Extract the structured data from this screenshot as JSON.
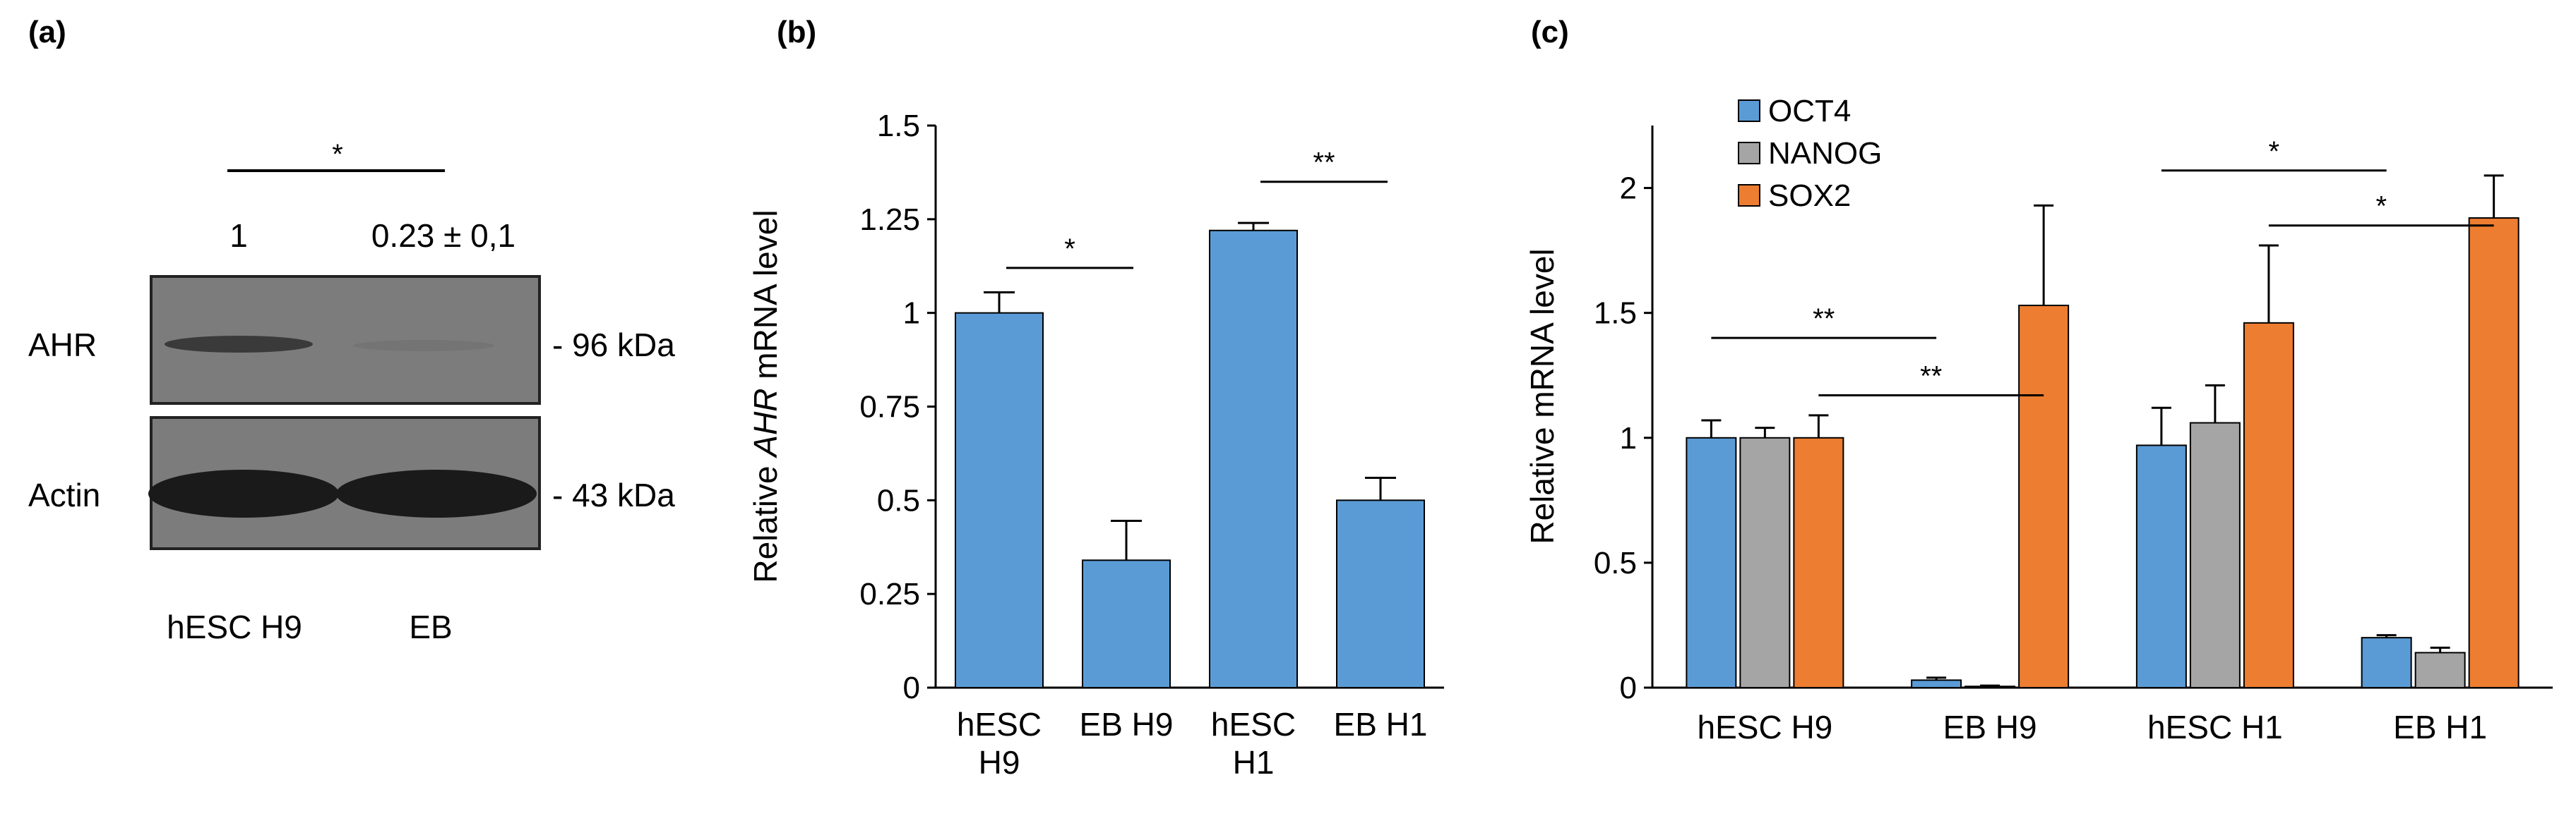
{
  "chart_data": [
    {
      "type": "western-blot",
      "panel_label": "(a)",
      "lanes": [
        "hESC H9",
        "EB"
      ],
      "bands": [
        {
          "name": "AHR",
          "size": "- 96 kDa"
        },
        {
          "name": "Actin",
          "size": "- 43 kDa"
        }
      ],
      "quantification": [
        "1",
        "0.23 ± 0,1"
      ],
      "significance": "*"
    },
    {
      "type": "bar",
      "panel_label": "(b)",
      "ylabel_italic": "AHR",
      "ylabel_prefix": "Relative ",
      "ylabel_suffix": " mRNA level",
      "categories": [
        [
          "hESC",
          "H9"
        ],
        [
          "EB H9"
        ],
        [
          "hESC",
          "H1"
        ],
        [
          "EB H1"
        ]
      ],
      "values": [
        1.0,
        0.34,
        1.22,
        0.5
      ],
      "errors": [
        0.055,
        0.105,
        0.02,
        0.06
      ],
      "color": "#5b9bd5",
      "ylim": [
        0,
        1.5
      ],
      "yticks": [
        0,
        0.25,
        0.5,
        0.75,
        1,
        1.25,
        1.5
      ],
      "ytick_labels": [
        "0",
        "0.25",
        "0.5",
        "0.75",
        "1",
        "1.25",
        "1.5"
      ],
      "significance": [
        {
          "from": 0,
          "to": 1,
          "y": 1.12,
          "label": "*"
        },
        {
          "from": 2,
          "to": 3,
          "y": 1.35,
          "label": "**"
        }
      ]
    },
    {
      "type": "bar",
      "panel_label": "(c)",
      "ylabel": "Relative mRNA level",
      "categories": [
        "hESC H9",
        "EB H9",
        "hESC H1",
        "EB H1"
      ],
      "series": [
        {
          "name": "OCT4",
          "color": "#5b9bd5",
          "values": [
            1.0,
            0.03,
            0.97,
            0.2
          ],
          "errors": [
            0.07,
            0.01,
            0.15,
            0.01
          ]
        },
        {
          "name": "NANOG",
          "color": "#a5a5a5",
          "values": [
            1.0,
            0.005,
            1.06,
            0.14
          ],
          "errors": [
            0.04,
            0.003,
            0.15,
            0.02
          ]
        },
        {
          "name": "SOX2",
          "color": "#ed7d31",
          "values": [
            1.0,
            1.53,
            1.46,
            1.88
          ],
          "errors": [
            0.09,
            0.4,
            0.31,
            0.17
          ]
        }
      ],
      "ylim": [
        0,
        2.25
      ],
      "yticks": [
        0,
        0.5,
        1,
        1.5,
        2
      ],
      "ytick_labels": [
        "0",
        "0.5",
        "1",
        "1.5",
        "2"
      ],
      "significance": [
        {
          "from_group": 0,
          "from_series": 0,
          "to_group": 1,
          "to_series": 0,
          "y": 1.4,
          "label": "**"
        },
        {
          "from_group": 0,
          "from_series": 2,
          "to_group": 1,
          "to_series": 2,
          "y": 1.17,
          "label": "**"
        },
        {
          "from_group": 2,
          "from_series": 0,
          "to_group": 3,
          "to_series": 0,
          "y": 2.07,
          "label": "*"
        },
        {
          "from_group": 2,
          "from_series": 2,
          "to_group": 3,
          "to_series": 2,
          "y": 1.85,
          "label": "*"
        }
      ]
    }
  ]
}
